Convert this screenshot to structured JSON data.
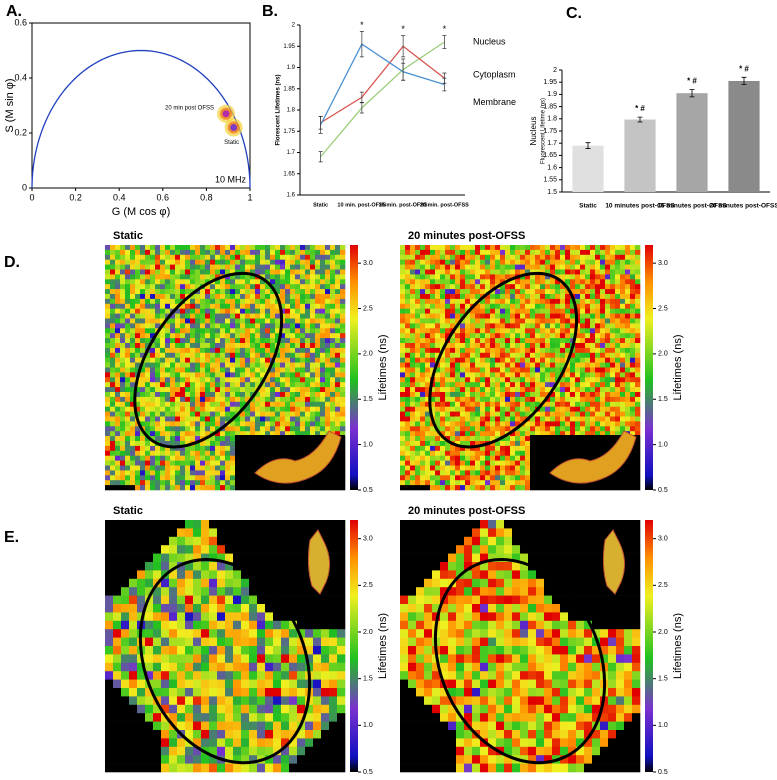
{
  "chart_data": [
    {
      "type": "scatter",
      "panel_label": "A.",
      "xlabel": "G (M cos φ)",
      "ylabel": "S (M sin φ)",
      "xlim": [
        0,
        1
      ],
      "ylim": [
        0,
        0.6
      ],
      "xticks": [
        0,
        0.2,
        0.4,
        0.6,
        0.8,
        1
      ],
      "yticks": [
        0,
        0.2,
        0.4,
        0.6
      ],
      "series": [
        {
          "name": "20 min post OFSS",
          "color": "#b02fa8",
          "x": [
            0.89
          ],
          "values": [
            0.27
          ]
        },
        {
          "name": "Static",
          "color": "#7e3cc0",
          "x": [
            0.925
          ],
          "values": [
            0.22
          ]
        }
      ],
      "annotation": "10 MHz"
    },
    {
      "type": "line",
      "panel_label": "B.",
      "ylabel": "Florescent Lifetimes (ns)",
      "categories": [
        "Static",
        "10 min. post-OFSS",
        "15 min. post-OFSS",
        "20 min. post-OFSS"
      ],
      "ylim": [
        1.6,
        2
      ],
      "yticks": [
        1.6,
        1.65,
        1.7,
        1.75,
        1.8,
        1.85,
        1.9,
        1.95,
        2
      ],
      "series": [
        {
          "name": "Nucleus",
          "color": "#9acd7a",
          "values": [
            1.69,
            1.805,
            1.895,
            1.96
          ],
          "errors": [
            0.012,
            0.012,
            0.025,
            0.015
          ]
        },
        {
          "name": "Cytoplasm",
          "color": "#d9534f",
          "values": [
            1.77,
            1.83,
            1.95,
            1.875
          ],
          "errors": [
            0.015,
            0.012,
            0.025,
            0.012
          ]
        },
        {
          "name": "Membrane",
          "color": "#4a90d0",
          "values": [
            1.765,
            1.955,
            1.89,
            1.86
          ],
          "errors": [
            0.02,
            0.03,
            0.02,
            0.015
          ]
        }
      ],
      "significance": [
        null,
        "*",
        "*",
        "*"
      ]
    },
    {
      "type": "bar",
      "panel_label": "C.",
      "ylabel": "Nucleus",
      "ylabel_sub": "Fluorescent Lifetime (ns)",
      "categories": [
        "Static",
        "10 minutes post-OFSS",
        "15 minutes post-OFSS",
        "20 minutes post-OFSS"
      ],
      "values": [
        1.69,
        1.797,
        1.905,
        1.955
      ],
      "errors": [
        0.012,
        0.01,
        0.015,
        0.015
      ],
      "colors": [
        "#e0e0e0",
        "#c4c4c4",
        "#a6a6a6",
        "#8a8a8a"
      ],
      "ylim": [
        1.5,
        2
      ],
      "yticks": [
        1.5,
        1.55,
        1.6,
        1.65,
        1.7,
        1.75,
        1.8,
        1.85,
        1.9,
        1.95,
        2
      ],
      "significance": [
        null,
        "*  #",
        "*  #",
        "*  #"
      ]
    },
    {
      "type": "heatmap",
      "panel_label": "D.",
      "subplots": [
        "Static",
        "20 minutes post-OFSS"
      ],
      "colorbar_label": "Lifetimes (ns)",
      "clim": [
        0.5,
        3.2
      ],
      "cticks": [
        0.5,
        {
          "value": 1,
          "label": "1.0"
        },
        1.5,
        {
          "value": 2,
          "label": "2.0"
        },
        2.5,
        {
          "value": 3,
          "label": "3.0"
        }
      ]
    },
    {
      "type": "heatmap",
      "panel_label": "E.",
      "subplots": [
        "Static",
        "20 minutes post-OFSS"
      ],
      "colorbar_label": "Lifetimes (ns)",
      "clim": [
        0.5,
        3.2
      ],
      "cticks": [
        0.5,
        {
          "value": 1,
          "label": "1.0"
        },
        1.5,
        {
          "value": 2,
          "label": "2.0"
        },
        2.5,
        {
          "value": 3,
          "label": "3.0"
        }
      ]
    }
  ]
}
